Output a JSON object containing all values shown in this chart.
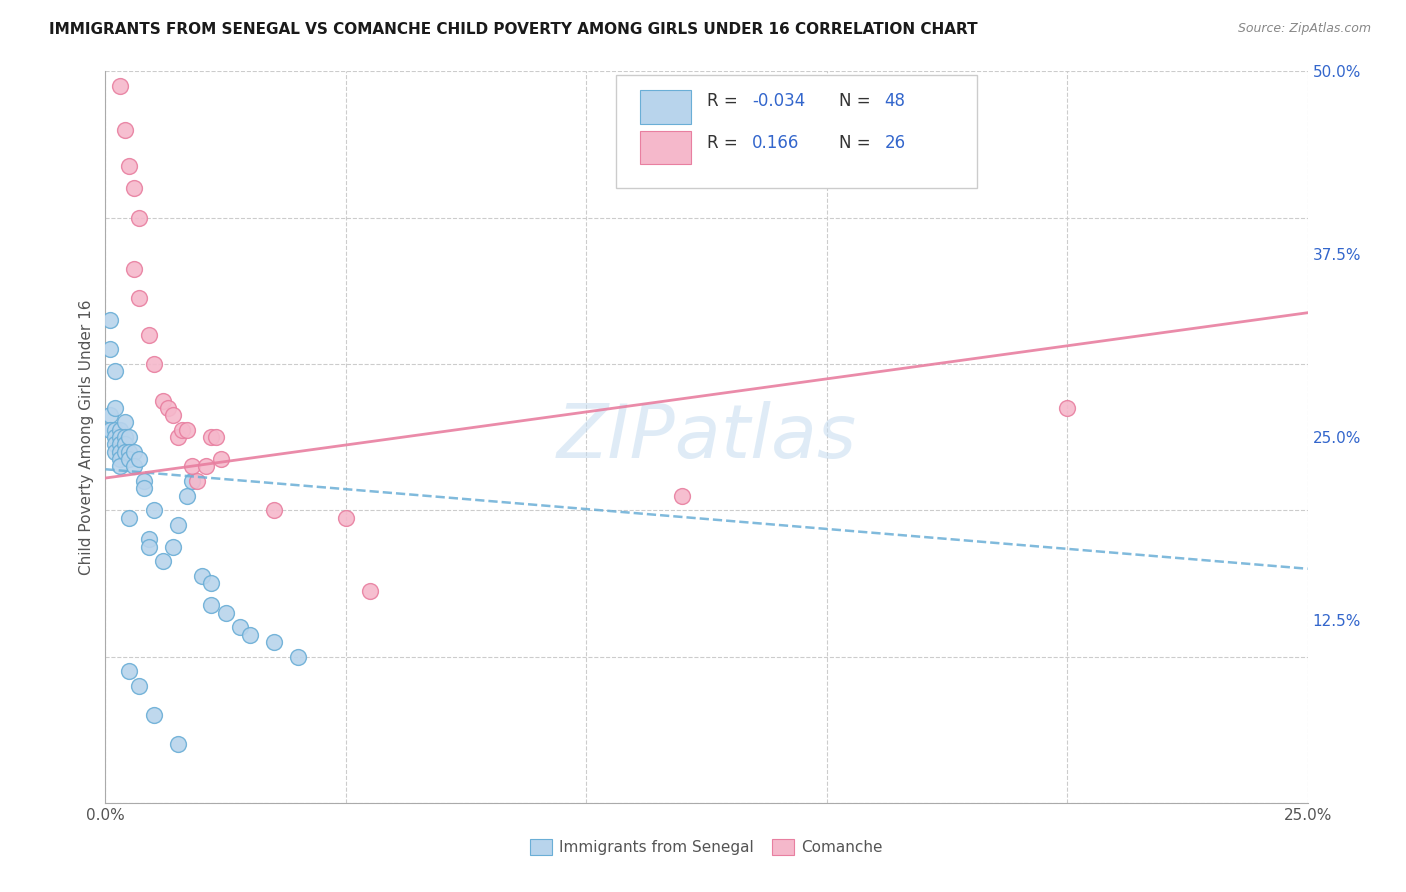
{
  "title": "IMMIGRANTS FROM SENEGAL VS COMANCHE CHILD POVERTY AMONG GIRLS UNDER 16 CORRELATION CHART",
  "source": "Source: ZipAtlas.com",
  "ylabel": "Child Poverty Among Girls Under 16",
  "xlim": [
    0.0,
    0.25
  ],
  "ylim": [
    0.0,
    0.5
  ],
  "background_color": "#ffffff",
  "senegal_fill": "#b8d4ec",
  "senegal_edge": "#6aaed6",
  "comanche_fill": "#f5b8cb",
  "comanche_edge": "#e87fa0",
  "trendline_senegal_color": "#6aaed6",
  "trendline_comanche_color": "#e87fa0",
  "legend_text_color": "#3366cc",
  "right_axis_color": "#3366cc",
  "senegal_trend_y0": 0.228,
  "senegal_trend_y1": 0.16,
  "comanche_trend_y0": 0.222,
  "comanche_trend_y1": 0.335,
  "senegal_points": [
    [
      0.001,
      0.33
    ],
    [
      0.001,
      0.31
    ],
    [
      0.001,
      0.265
    ],
    [
      0.001,
      0.255
    ],
    [
      0.002,
      0.295
    ],
    [
      0.002,
      0.27
    ],
    [
      0.002,
      0.255
    ],
    [
      0.002,
      0.25
    ],
    [
      0.002,
      0.245
    ],
    [
      0.002,
      0.24
    ],
    [
      0.003,
      0.255
    ],
    [
      0.003,
      0.25
    ],
    [
      0.003,
      0.245
    ],
    [
      0.003,
      0.24
    ],
    [
      0.003,
      0.235
    ],
    [
      0.003,
      0.23
    ],
    [
      0.004,
      0.26
    ],
    [
      0.004,
      0.25
    ],
    [
      0.004,
      0.245
    ],
    [
      0.004,
      0.24
    ],
    [
      0.005,
      0.25
    ],
    [
      0.005,
      0.24
    ],
    [
      0.005,
      0.235
    ],
    [
      0.005,
      0.195
    ],
    [
      0.006,
      0.24
    ],
    [
      0.006,
      0.23
    ],
    [
      0.007,
      0.235
    ],
    [
      0.008,
      0.22
    ],
    [
      0.008,
      0.215
    ],
    [
      0.009,
      0.18
    ],
    [
      0.009,
      0.175
    ],
    [
      0.01,
      0.2
    ],
    [
      0.012,
      0.165
    ],
    [
      0.014,
      0.175
    ],
    [
      0.015,
      0.19
    ],
    [
      0.017,
      0.21
    ],
    [
      0.018,
      0.22
    ],
    [
      0.02,
      0.155
    ],
    [
      0.022,
      0.15
    ],
    [
      0.022,
      0.135
    ],
    [
      0.025,
      0.13
    ],
    [
      0.028,
      0.12
    ],
    [
      0.03,
      0.115
    ],
    [
      0.035,
      0.11
    ],
    [
      0.04,
      0.1
    ],
    [
      0.005,
      0.09
    ],
    [
      0.007,
      0.08
    ],
    [
      0.01,
      0.06
    ],
    [
      0.015,
      0.04
    ]
  ],
  "comanche_points": [
    [
      0.003,
      0.49
    ],
    [
      0.004,
      0.46
    ],
    [
      0.005,
      0.435
    ],
    [
      0.006,
      0.42
    ],
    [
      0.007,
      0.4
    ],
    [
      0.006,
      0.365
    ],
    [
      0.007,
      0.345
    ],
    [
      0.009,
      0.32
    ],
    [
      0.01,
      0.3
    ],
    [
      0.012,
      0.275
    ],
    [
      0.013,
      0.27
    ],
    [
      0.014,
      0.265
    ],
    [
      0.015,
      0.25
    ],
    [
      0.016,
      0.255
    ],
    [
      0.017,
      0.255
    ],
    [
      0.018,
      0.23
    ],
    [
      0.019,
      0.22
    ],
    [
      0.021,
      0.23
    ],
    [
      0.022,
      0.25
    ],
    [
      0.023,
      0.25
    ],
    [
      0.024,
      0.235
    ],
    [
      0.035,
      0.2
    ],
    [
      0.05,
      0.195
    ],
    [
      0.055,
      0.145
    ],
    [
      0.12,
      0.21
    ],
    [
      0.2,
      0.27
    ]
  ]
}
